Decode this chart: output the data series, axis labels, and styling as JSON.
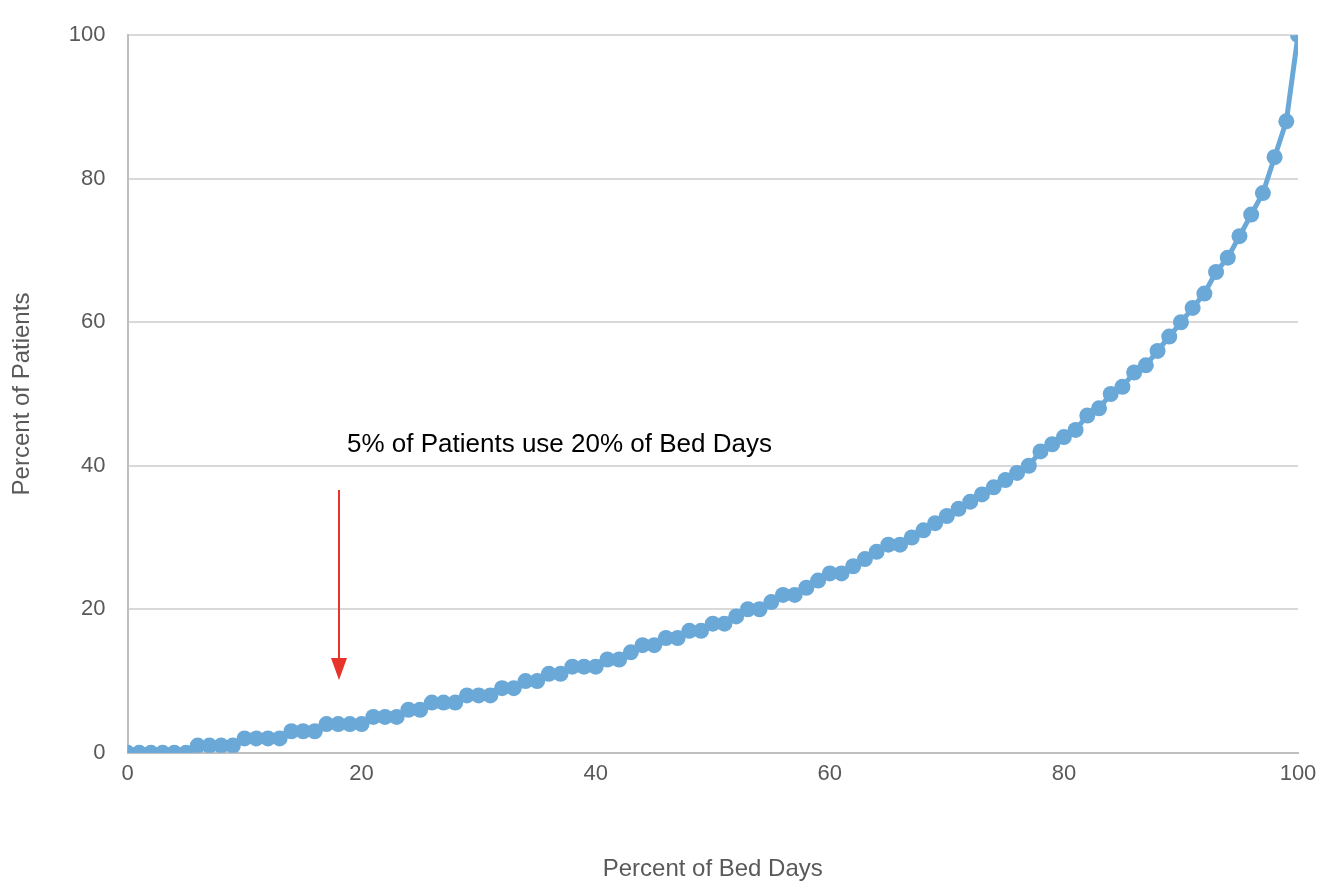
{
  "chart_data": {
    "type": "line",
    "xlabel": "Percent of Bed Days",
    "ylabel": "Percent of Patients",
    "x": [
      0,
      1,
      2,
      3,
      4,
      5,
      6,
      7,
      8,
      9,
      10,
      11,
      12,
      13,
      14,
      15,
      16,
      17,
      18,
      19,
      20,
      21,
      22,
      23,
      24,
      25,
      26,
      27,
      28,
      29,
      30,
      31,
      32,
      33,
      34,
      35,
      36,
      37,
      38,
      39,
      40,
      41,
      42,
      43,
      44,
      45,
      46,
      47,
      48,
      49,
      50,
      51,
      52,
      53,
      54,
      55,
      56,
      57,
      58,
      59,
      60,
      61,
      62,
      63,
      64,
      65,
      66,
      67,
      68,
      69,
      70,
      71,
      72,
      73,
      74,
      75,
      76,
      77,
      78,
      79,
      80,
      81,
      82,
      83,
      84,
      85,
      86,
      87,
      88,
      89,
      90,
      91,
      92,
      93,
      94,
      95,
      96,
      97,
      98,
      99,
      100
    ],
    "series": [
      {
        "color": "#6aa8d8",
        "values": [
          0,
          0,
          0,
          0,
          0,
          0,
          1,
          1,
          1,
          1,
          2,
          2,
          2,
          2,
          3,
          3,
          3,
          4,
          4,
          4,
          4,
          5,
          5,
          5,
          6,
          6,
          7,
          7,
          7,
          8,
          8,
          8,
          9,
          9,
          10,
          10,
          11,
          11,
          12,
          12,
          12,
          13,
          13,
          14,
          15,
          15,
          16,
          16,
          17,
          17,
          18,
          18,
          19,
          20,
          20,
          21,
          22,
          22,
          23,
          24,
          25,
          25,
          26,
          27,
          28,
          29,
          29,
          30,
          31,
          32,
          33,
          34,
          35,
          36,
          37,
          38,
          39,
          40,
          42,
          43,
          44,
          45,
          47,
          48,
          50,
          51,
          53,
          54,
          56,
          58,
          60,
          62,
          64,
          67,
          69,
          72,
          75,
          78,
          83,
          88,
          100
        ]
      }
    ],
    "xlim": [
      0,
      100
    ],
    "xticks": [
      0,
      20,
      40,
      60,
      80,
      100
    ],
    "ylim": [
      0,
      100
    ],
    "yticks": [
      0,
      20,
      40,
      60,
      80,
      100
    ],
    "grid": "y",
    "marker": "circle",
    "line_style": "solid",
    "annotations": [
      "5% of Patients use 20% of Bed Days"
    ]
  }
}
